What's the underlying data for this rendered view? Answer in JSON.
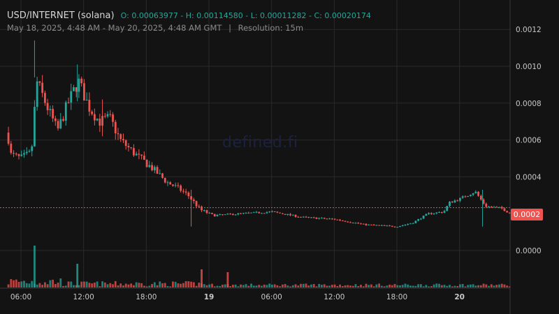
{
  "header": {
    "pair": "USD/INTERNET (solana)",
    "ohlc": "O: 0.00063977 - H: 0.00114580 - L: 0.00011282 - C: 0.00020174",
    "range": "May 18, 2025, 4:48 AM - May 20, 2025, 4:48 AM GMT",
    "separator": "|",
    "resolution": "Resolution: 15m"
  },
  "watermark": "defined.fi",
  "colors": {
    "background": "#131313",
    "up": "#26a69a",
    "down": "#ef5350",
    "grid": "#2a2a2a",
    "axis_text": "#c8c8c8"
  },
  "chart_data": {
    "type": "candlestick",
    "y_ticks": [
      "0.0012",
      "0.0010",
      "0.0008",
      "0.0006",
      "0.0004",
      "0.0000"
    ],
    "x_ticks": [
      "06:00",
      "12:00",
      "18:00",
      "19",
      "06:00",
      "12:00",
      "18:00",
      "20"
    ],
    "last_price_label": "0.0002",
    "ylim": [
      0,
      0.0012
    ],
    "grid": true,
    "price_path": [
      [
        4.8,
        0.00064
      ],
      [
        5.0,
        0.00052
      ],
      [
        6.0,
        0.0005
      ],
      [
        7.0,
        0.00053
      ],
      [
        7.5,
        0.00092
      ],
      [
        8.5,
        0.00078
      ],
      [
        9.5,
        0.00065
      ],
      [
        10.5,
        0.0008
      ],
      [
        11.5,
        0.00092
      ],
      [
        12.5,
        0.00078
      ],
      [
        13.5,
        0.0007
      ],
      [
        14.5,
        0.00072
      ],
      [
        15.5,
        0.0006
      ],
      [
        17.0,
        0.00052
      ],
      [
        18.5,
        0.00045
      ],
      [
        20.0,
        0.00037
      ],
      [
        21.0,
        0.00034
      ],
      [
        22.0,
        0.0003
      ],
      [
        23.2,
        0.00022
      ],
      [
        24.5,
        0.00019
      ],
      [
        27.0,
        0.0002
      ],
      [
        30.0,
        0.00021
      ],
      [
        33.0,
        0.00018
      ],
      [
        36.0,
        0.00017
      ],
      [
        39.0,
        0.00014
      ],
      [
        42.0,
        0.00013
      ],
      [
        43.5,
        0.00015
      ],
      [
        45.0,
        0.0002
      ],
      [
        46.5,
        0.00021
      ],
      [
        47.0,
        0.00026
      ],
      [
        48.0,
        0.00028
      ],
      [
        49.5,
        0.00032
      ],
      [
        50.5,
        0.00024
      ],
      [
        52.0,
        0.00023
      ],
      [
        52.8,
        0.000202
      ]
    ]
  }
}
